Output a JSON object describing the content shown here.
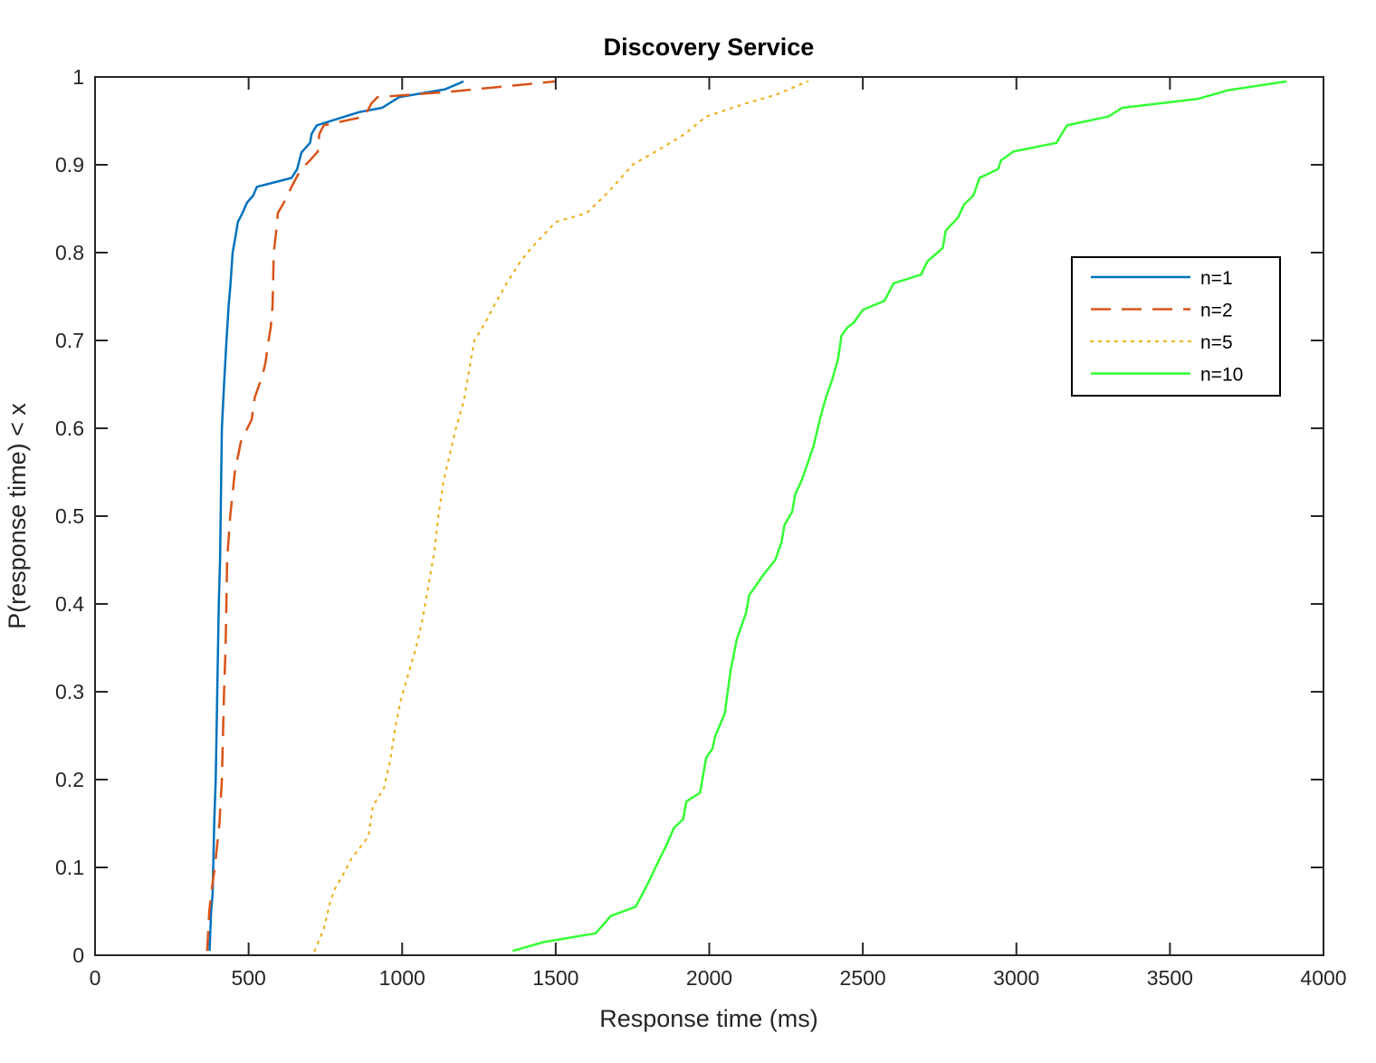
{
  "chart_data": {
    "type": "line",
    "title": "Discovery Service",
    "xlabel": "Response time (ms)",
    "ylabel": "P(response time) < x",
    "xlim": [
      0,
      4000
    ],
    "ylim": [
      0,
      1
    ],
    "xticks": [
      0,
      500,
      1000,
      1500,
      2000,
      2500,
      3000,
      3500,
      4000
    ],
    "yticks": [
      0,
      0.1,
      0.2,
      0.3,
      0.4,
      0.5,
      0.6,
      0.7,
      0.8,
      0.9,
      1
    ],
    "xtick_labels": [
      "0",
      "500",
      "1000",
      "1500",
      "2000",
      "2500",
      "3000",
      "3500",
      "4000"
    ],
    "ytick_labels": [
      "0",
      "0.1",
      "0.2",
      "0.3",
      "0.4",
      "0.5",
      "0.6",
      "0.7",
      "0.8",
      "0.9",
      "1"
    ],
    "grid": false,
    "legend_position": "upper-right",
    "series": [
      {
        "name": "n=1",
        "color": "#0072BD",
        "dash": "solid",
        "points": [
          [
            373,
            0.005
          ],
          [
            378,
            0.05
          ],
          [
            383,
            0.07
          ],
          [
            388,
            0.15
          ],
          [
            393,
            0.2
          ],
          [
            398,
            0.3
          ],
          [
            403,
            0.4
          ],
          [
            407,
            0.45
          ],
          [
            413,
            0.6
          ],
          [
            420,
            0.65
          ],
          [
            428,
            0.7
          ],
          [
            435,
            0.74
          ],
          [
            440,
            0.76
          ],
          [
            448,
            0.8
          ],
          [
            458,
            0.82
          ],
          [
            465,
            0.835
          ],
          [
            480,
            0.845
          ],
          [
            495,
            0.857
          ],
          [
            515,
            0.865
          ],
          [
            527,
            0.875
          ],
          [
            640,
            0.885
          ],
          [
            658,
            0.895
          ],
          [
            672,
            0.914
          ],
          [
            700,
            0.925
          ],
          [
            705,
            0.935
          ],
          [
            722,
            0.945
          ],
          [
            860,
            0.96
          ],
          [
            935,
            0.965
          ],
          [
            990,
            0.977
          ],
          [
            1140,
            0.986
          ],
          [
            1200,
            0.995
          ]
        ]
      },
      {
        "name": "n=2",
        "color": "#D95319",
        "dash": "dashed",
        "points": [
          [
            365,
            0.005
          ],
          [
            372,
            0.05
          ],
          [
            378,
            0.07
          ],
          [
            390,
            0.1
          ],
          [
            405,
            0.15
          ],
          [
            413,
            0.2
          ],
          [
            420,
            0.3
          ],
          [
            425,
            0.35
          ],
          [
            430,
            0.45
          ],
          [
            440,
            0.5
          ],
          [
            455,
            0.55
          ],
          [
            475,
            0.585
          ],
          [
            510,
            0.61
          ],
          [
            520,
            0.635
          ],
          [
            545,
            0.66
          ],
          [
            555,
            0.675
          ],
          [
            565,
            0.7
          ],
          [
            572,
            0.715
          ],
          [
            578,
            0.74
          ],
          [
            582,
            0.8
          ],
          [
            590,
            0.825
          ],
          [
            595,
            0.845
          ],
          [
            620,
            0.86
          ],
          [
            640,
            0.875
          ],
          [
            670,
            0.895
          ],
          [
            700,
            0.905
          ],
          [
            725,
            0.915
          ],
          [
            730,
            0.935
          ],
          [
            745,
            0.945
          ],
          [
            878,
            0.955
          ],
          [
            900,
            0.97
          ],
          [
            920,
            0.977
          ],
          [
            1150,
            0.983
          ],
          [
            1500,
            0.995
          ]
        ]
      },
      {
        "name": "n=5",
        "color": "#EDB120",
        "dash": "dotted",
        "points": [
          [
            715,
            0.005
          ],
          [
            745,
            0.03
          ],
          [
            765,
            0.06
          ],
          [
            780,
            0.075
          ],
          [
            805,
            0.09
          ],
          [
            835,
            0.11
          ],
          [
            890,
            0.135
          ],
          [
            905,
            0.17
          ],
          [
            940,
            0.19
          ],
          [
            960,
            0.22
          ],
          [
            978,
            0.26
          ],
          [
            995,
            0.29
          ],
          [
            1020,
            0.32
          ],
          [
            1045,
            0.35
          ],
          [
            1065,
            0.38
          ],
          [
            1085,
            0.42
          ],
          [
            1105,
            0.46
          ],
          [
            1118,
            0.5
          ],
          [
            1135,
            0.54
          ],
          [
            1155,
            0.57
          ],
          [
            1175,
            0.6
          ],
          [
            1200,
            0.63
          ],
          [
            1220,
            0.67
          ],
          [
            1235,
            0.7
          ],
          [
            1270,
            0.72
          ],
          [
            1300,
            0.74
          ],
          [
            1340,
            0.765
          ],
          [
            1385,
            0.79
          ],
          [
            1420,
            0.805
          ],
          [
            1460,
            0.82
          ],
          [
            1500,
            0.835
          ],
          [
            1600,
            0.845
          ],
          [
            1660,
            0.865
          ],
          [
            1700,
            0.88
          ],
          [
            1750,
            0.9
          ],
          [
            1850,
            0.92
          ],
          [
            1920,
            0.935
          ],
          [
            1990,
            0.955
          ],
          [
            2120,
            0.97
          ],
          [
            2220,
            0.98
          ],
          [
            2320,
            0.995
          ]
        ]
      },
      {
        "name": "n=10",
        "color": "#33FF33",
        "dash": "solid",
        "points": [
          [
            1360,
            0.005
          ],
          [
            1460,
            0.015
          ],
          [
            1630,
            0.025
          ],
          [
            1680,
            0.045
          ],
          [
            1760,
            0.055
          ],
          [
            1790,
            0.075
          ],
          [
            1805,
            0.085
          ],
          [
            1825,
            0.1
          ],
          [
            1860,
            0.125
          ],
          [
            1885,
            0.145
          ],
          [
            1915,
            0.155
          ],
          [
            1925,
            0.175
          ],
          [
            1970,
            0.185
          ],
          [
            1980,
            0.205
          ],
          [
            1990,
            0.225
          ],
          [
            2010,
            0.235
          ],
          [
            2020,
            0.25
          ],
          [
            2050,
            0.275
          ],
          [
            2060,
            0.3
          ],
          [
            2070,
            0.325
          ],
          [
            2090,
            0.36
          ],
          [
            2120,
            0.39
          ],
          [
            2130,
            0.41
          ],
          [
            2180,
            0.435
          ],
          [
            2215,
            0.45
          ],
          [
            2235,
            0.47
          ],
          [
            2245,
            0.49
          ],
          [
            2270,
            0.505
          ],
          [
            2280,
            0.525
          ],
          [
            2300,
            0.54
          ],
          [
            2320,
            0.56
          ],
          [
            2340,
            0.58
          ],
          [
            2360,
            0.61
          ],
          [
            2380,
            0.635
          ],
          [
            2400,
            0.655
          ],
          [
            2420,
            0.68
          ],
          [
            2430,
            0.705
          ],
          [
            2450,
            0.715
          ],
          [
            2470,
            0.72
          ],
          [
            2500,
            0.735
          ],
          [
            2570,
            0.745
          ],
          [
            2600,
            0.765
          ],
          [
            2690,
            0.775
          ],
          [
            2710,
            0.79
          ],
          [
            2760,
            0.805
          ],
          [
            2770,
            0.825
          ],
          [
            2810,
            0.84
          ],
          [
            2830,
            0.855
          ],
          [
            2860,
            0.865
          ],
          [
            2880,
            0.885
          ],
          [
            2940,
            0.895
          ],
          [
            2950,
            0.905
          ],
          [
            2990,
            0.915
          ],
          [
            3130,
            0.925
          ],
          [
            3165,
            0.945
          ],
          [
            3300,
            0.955
          ],
          [
            3345,
            0.965
          ],
          [
            3590,
            0.975
          ],
          [
            3690,
            0.985
          ],
          [
            3880,
            0.995
          ]
        ]
      }
    ]
  }
}
